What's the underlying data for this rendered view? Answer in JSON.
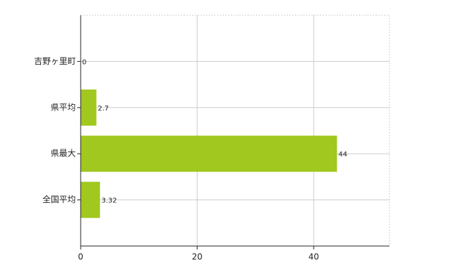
{
  "chart_data": {
    "type": "bar",
    "orientation": "horizontal",
    "categories": [
      "吉野ヶ里町",
      "県平均",
      "県最大",
      "全国平均"
    ],
    "values": [
      0,
      2.7,
      44,
      3.32
    ],
    "color": "#a0c81e",
    "xlim": [
      0,
      53
    ],
    "xticks": [
      0,
      20,
      40
    ],
    "grid": true
  }
}
